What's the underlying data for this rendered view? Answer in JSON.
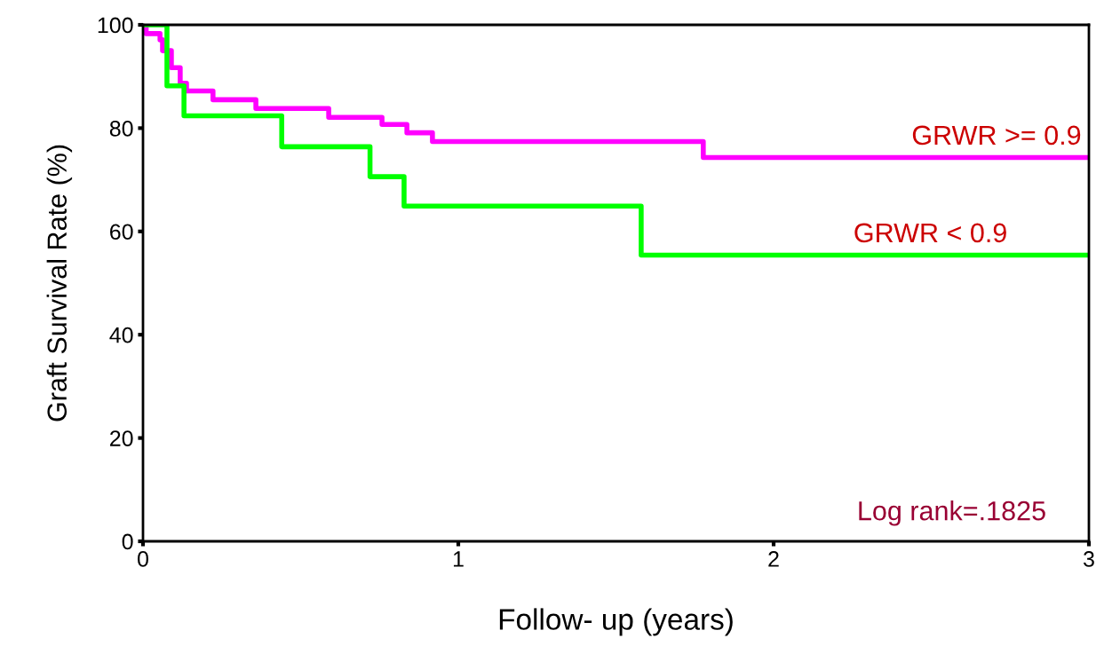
{
  "chart_data": {
    "type": "step",
    "xlabel": "Follow- up (years)",
    "ylabel": "Graft Survival Rate (%)",
    "series": [
      {
        "name": "GRWR >= 0.9",
        "color": "#ff00ff",
        "x": [
          0,
          0.01,
          0.054,
          0.062,
          0.09,
          0.118,
          0.138,
          0.222,
          0.358,
          0.589,
          0.758,
          0.837,
          0.918,
          1.777,
          3
        ],
        "values": [
          100,
          98.3,
          97.1,
          95,
          91.7,
          88.7,
          87.2,
          85.5,
          83.8,
          82.1,
          80.7,
          79.1,
          77.4,
          74.3,
          74.3
        ]
      },
      {
        "name": "GRWR < 0.9",
        "color": "#00ff00",
        "x": [
          0,
          0.076,
          0.13,
          0.44,
          0.72,
          0.828,
          1.58,
          3
        ],
        "values": [
          100,
          88.2,
          82.4,
          76.4,
          70.6,
          64.9,
          55.4,
          55.4
        ]
      }
    ],
    "annotations": [
      "Log rank=.1825"
    ],
    "xlim": [
      0,
      3
    ],
    "xticks": [
      0,
      1,
      2,
      3
    ],
    "ylim": [
      0,
      100
    ],
    "yticks": [
      0,
      20,
      40,
      60,
      80,
      100
    ],
    "grid": false,
    "legend": false
  }
}
